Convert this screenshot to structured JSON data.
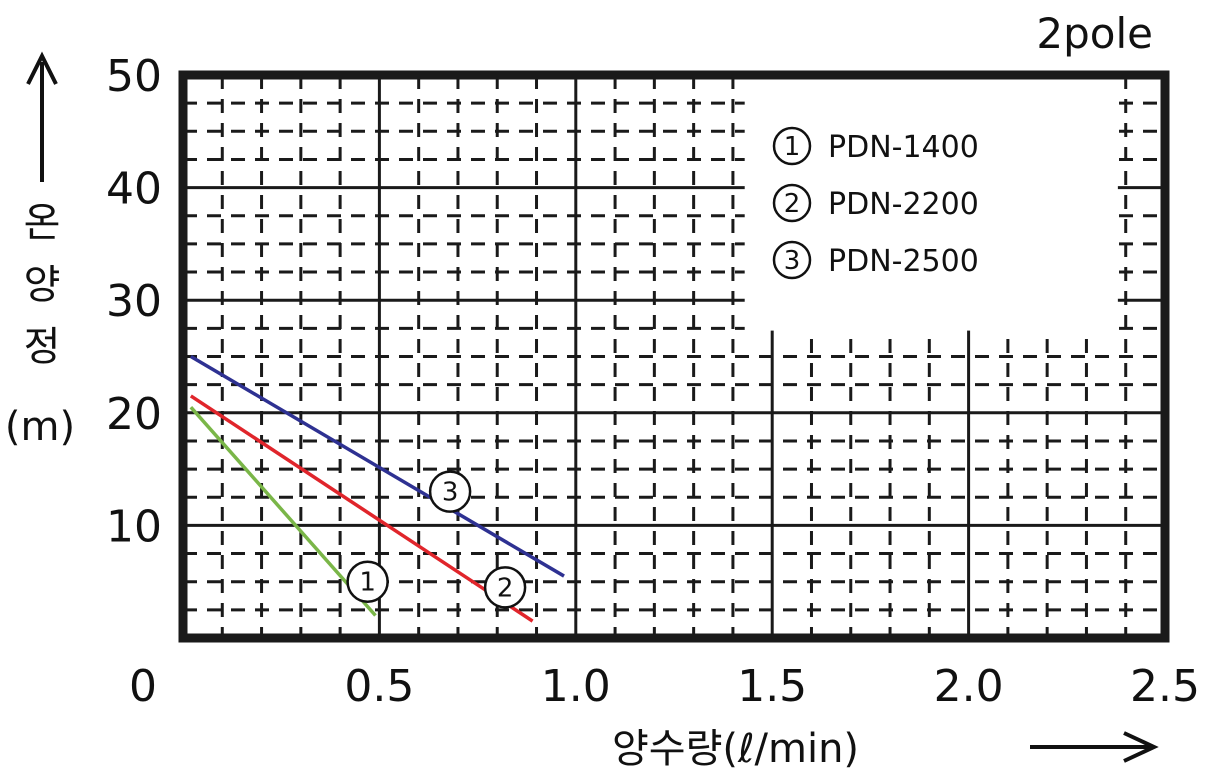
{
  "chart_data": {
    "type": "line",
    "corner_label": "2pole",
    "xlabel": "양수량(ℓ/min)",
    "ylabel_chars": [
      "온",
      "양",
      "정"
    ],
    "ylabel_unit": "(m)",
    "xlim": [
      0,
      2.5
    ],
    "ylim": [
      0,
      50
    ],
    "x_ticks": [
      {
        "value": 0,
        "label": "0"
      },
      {
        "value": 0.5,
        "label": "0.5"
      },
      {
        "value": 1.0,
        "label": "1.0"
      },
      {
        "value": 1.5,
        "label": "1.5"
      },
      {
        "value": 2.0,
        "label": "2.0"
      },
      {
        "value": 2.5,
        "label": "2.5"
      }
    ],
    "y_ticks": [
      {
        "value": 10,
        "label": "10"
      },
      {
        "value": 20,
        "label": "20"
      },
      {
        "value": 30,
        "label": "30"
      },
      {
        "value": 40,
        "label": "40"
      },
      {
        "value": 50,
        "label": "50"
      }
    ],
    "grid": true,
    "legend_position": "top-right",
    "series": [
      {
        "marker": "1",
        "name": "PDN-1400",
        "color": "#7ab648",
        "points": [
          [
            0.02,
            20.5
          ],
          [
            0.49,
            2.0
          ]
        ],
        "marker_at": [
          0.47,
          5.0
        ]
      },
      {
        "marker": "2",
        "name": "PDN-2200",
        "color": "#e0252b",
        "points": [
          [
            0.02,
            21.5
          ],
          [
            0.89,
            1.5
          ]
        ],
        "marker_at": [
          0.82,
          4.5
        ]
      },
      {
        "marker": "3",
        "name": "PDN-2500",
        "color": "#2e3192",
        "points": [
          [
            0.02,
            25.0
          ],
          [
            0.97,
            5.5
          ]
        ],
        "marker_at": [
          0.68,
          13.0
        ]
      }
    ]
  }
}
